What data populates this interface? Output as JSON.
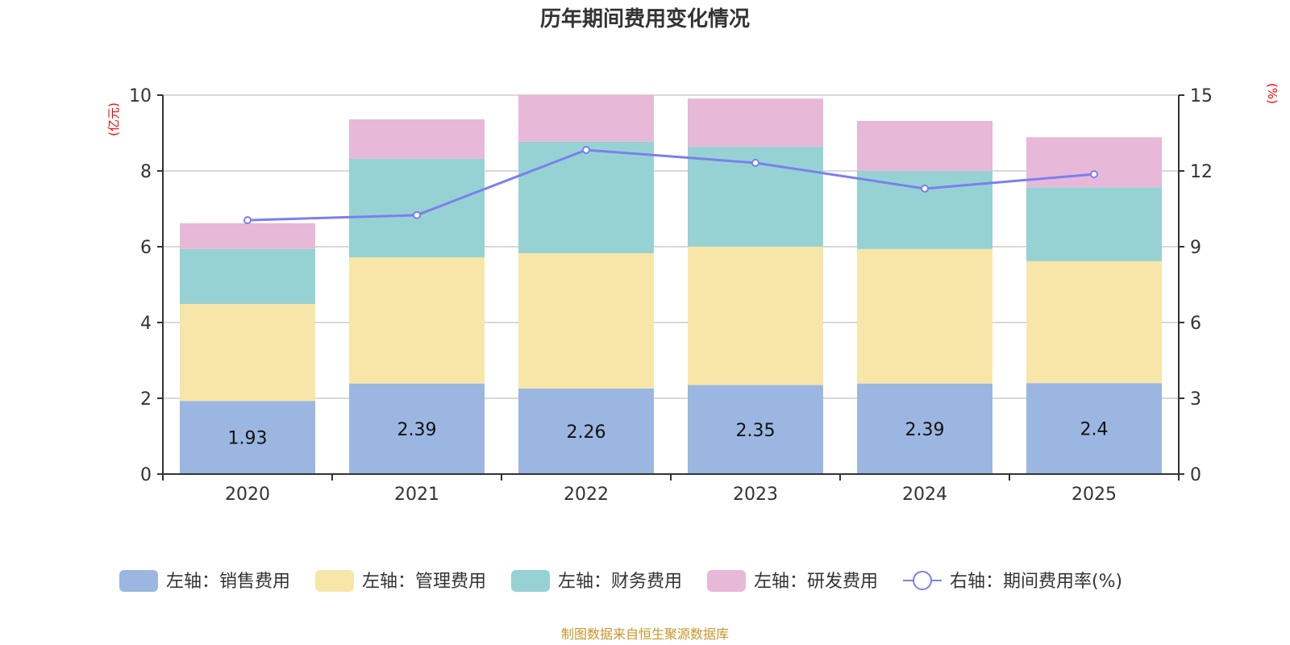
{
  "chart_data": {
    "type": "bar",
    "stacked": true,
    "title": "历年期间费用变化情况",
    "categories": [
      "2020",
      "2021",
      "2022",
      "2023",
      "2024",
      "2025"
    ],
    "left_axis": {
      "unit_label": "(亿元)",
      "ylim": [
        0,
        10
      ],
      "ticks": [
        "0",
        "2",
        "4",
        "6",
        "8",
        "10"
      ]
    },
    "right_axis": {
      "unit_label": "(%)",
      "ylim": [
        0,
        15
      ],
      "ticks": [
        "0",
        "3",
        "6",
        "9",
        "12",
        "15"
      ]
    },
    "grid": true,
    "legend_position": "bottom",
    "series": [
      {
        "name": "左轴：销售费用",
        "type": "bar",
        "axis": "left",
        "color": "#9bb7e1",
        "values": [
          1.93,
          2.39,
          2.26,
          2.35,
          2.39,
          2.4
        ],
        "labels": [
          "1.93",
          "2.39",
          "2.26",
          "2.35",
          "2.39",
          "2.4"
        ]
      },
      {
        "name": "左轴：管理费用",
        "type": "bar",
        "axis": "left",
        "color": "#f7e6a8",
        "values": [
          2.56,
          3.33,
          3.57,
          3.65,
          3.55,
          3.22
        ]
      },
      {
        "name": "左轴：财务费用",
        "type": "bar",
        "axis": "left",
        "color": "#96d2d3",
        "values": [
          1.45,
          2.6,
          2.94,
          2.64,
          2.06,
          1.95
        ]
      },
      {
        "name": "左轴：研发费用",
        "type": "bar",
        "axis": "left",
        "color": "#e7b8d8",
        "values": [
          0.68,
          1.04,
          1.23,
          1.27,
          1.32,
          1.32
        ]
      },
      {
        "name": "右轴：期间费用率(%)",
        "type": "line",
        "axis": "right",
        "color": "#7b7ff0",
        "values": [
          10.05,
          10.25,
          12.83,
          12.32,
          11.3,
          11.87
        ]
      }
    ],
    "footer": "制图数据来自恒生聚源数据库"
  }
}
